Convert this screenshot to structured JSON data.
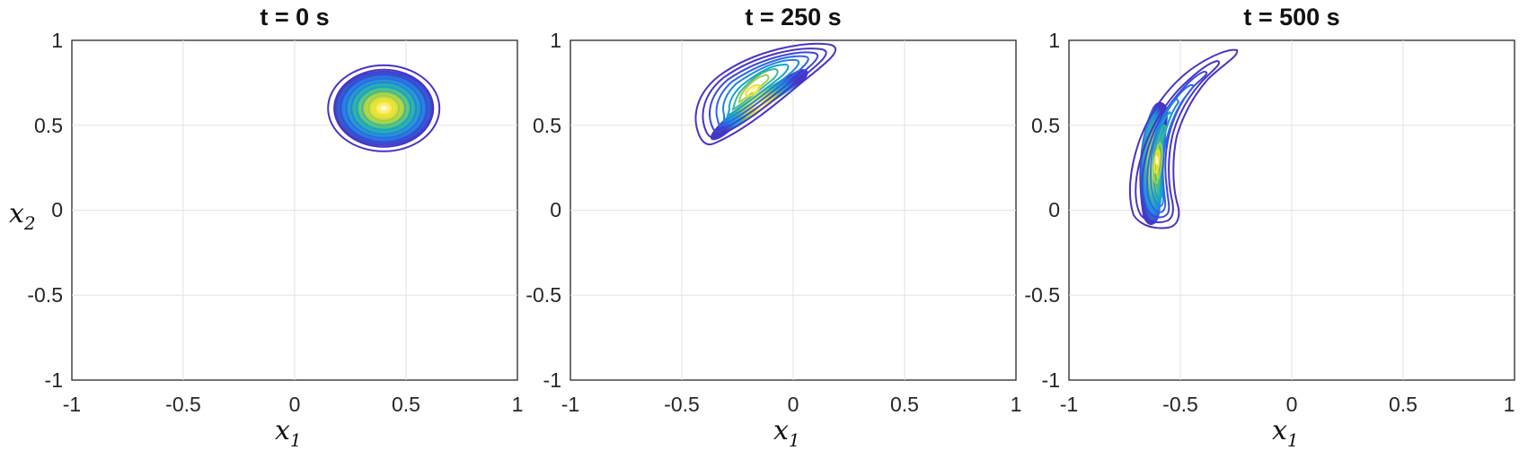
{
  "chart_data": [
    {
      "type": "contour",
      "title": "t = 0 s",
      "xlabel": "x1",
      "ylabel": "x2",
      "xlim": [
        -1,
        1
      ],
      "ylim": [
        -1,
        1
      ],
      "xticks": [
        "-1",
        "-0.5",
        "0",
        "0.5",
        "1"
      ],
      "yticks": [
        "-1",
        "-0.5",
        "0",
        "0.5",
        "1"
      ],
      "grid": true,
      "density_peak": [
        0.4,
        0.6
      ],
      "outer_contour": [
        [
          0.15,
          0.6
        ],
        [
          0.2,
          0.75
        ],
        [
          0.3,
          0.83
        ],
        [
          0.4,
          0.85
        ],
        [
          0.5,
          0.83
        ],
        [
          0.6,
          0.75
        ],
        [
          0.65,
          0.6
        ],
        [
          0.6,
          0.45
        ],
        [
          0.5,
          0.38
        ],
        [
          0.4,
          0.36
        ],
        [
          0.3,
          0.38
        ],
        [
          0.2,
          0.45
        ]
      ]
    },
    {
      "type": "contour",
      "title": "t = 250 s",
      "xlabel": "x1",
      "ylabel": "",
      "xlim": [
        -1,
        1
      ],
      "ylim": [
        -1,
        1
      ],
      "xticks": [
        "-1",
        "-0.5",
        "0",
        "0.5",
        "1"
      ],
      "yticks": [
        "-1",
        "-0.5",
        "0",
        "0.5",
        "1"
      ],
      "grid": true,
      "density_peak": [
        -0.17,
        0.7
      ],
      "outer_contour": [
        [
          -0.31,
          0.41
        ],
        [
          -0.23,
          0.45
        ],
        [
          -0.1,
          0.55
        ],
        [
          0.05,
          0.67
        ],
        [
          0.15,
          0.75
        ],
        [
          0.2,
          0.83
        ],
        [
          0.19,
          0.9
        ],
        [
          0.15,
          0.95
        ],
        [
          0.05,
          0.93
        ],
        [
          -0.05,
          0.89
        ],
        [
          -0.15,
          0.85
        ],
        [
          -0.28,
          0.77
        ],
        [
          -0.38,
          0.66
        ],
        [
          -0.42,
          0.55
        ],
        [
          -0.41,
          0.47
        ],
        [
          -0.37,
          0.42
        ]
      ]
    },
    {
      "type": "contour",
      "title": "t = 500 s",
      "xlabel": "x1",
      "ylabel": "",
      "xlim": [
        -1,
        1
      ],
      "ylim": [
        -1,
        1
      ],
      "xticks": [
        "-1",
        "-0.5",
        "0",
        "0.5",
        "1"
      ],
      "yticks": [
        "-1",
        "-0.5",
        "0",
        "0.5",
        "1"
      ],
      "grid": true,
      "density_peak": [
        -0.63,
        0.28
      ],
      "outer_contour": [
        [
          -0.26,
          0.92
        ],
        [
          -0.3,
          0.92
        ],
        [
          -0.4,
          0.86
        ],
        [
          -0.5,
          0.77
        ],
        [
          -0.6,
          0.65
        ],
        [
          -0.68,
          0.5
        ],
        [
          -0.73,
          0.35
        ],
        [
          -0.75,
          0.2
        ],
        [
          -0.73,
          0.05
        ],
        [
          -0.68,
          -0.05
        ],
        [
          -0.59,
          -0.1
        ],
        [
          -0.52,
          -0.11
        ],
        [
          -0.49,
          -0.06
        ],
        [
          -0.5,
          0.02
        ],
        [
          -0.52,
          0.12
        ],
        [
          -0.52,
          0.25
        ],
        [
          -0.5,
          0.42
        ],
        [
          -0.45,
          0.57
        ],
        [
          -0.37,
          0.72
        ],
        [
          -0.29,
          0.85
        ]
      ]
    }
  ]
}
